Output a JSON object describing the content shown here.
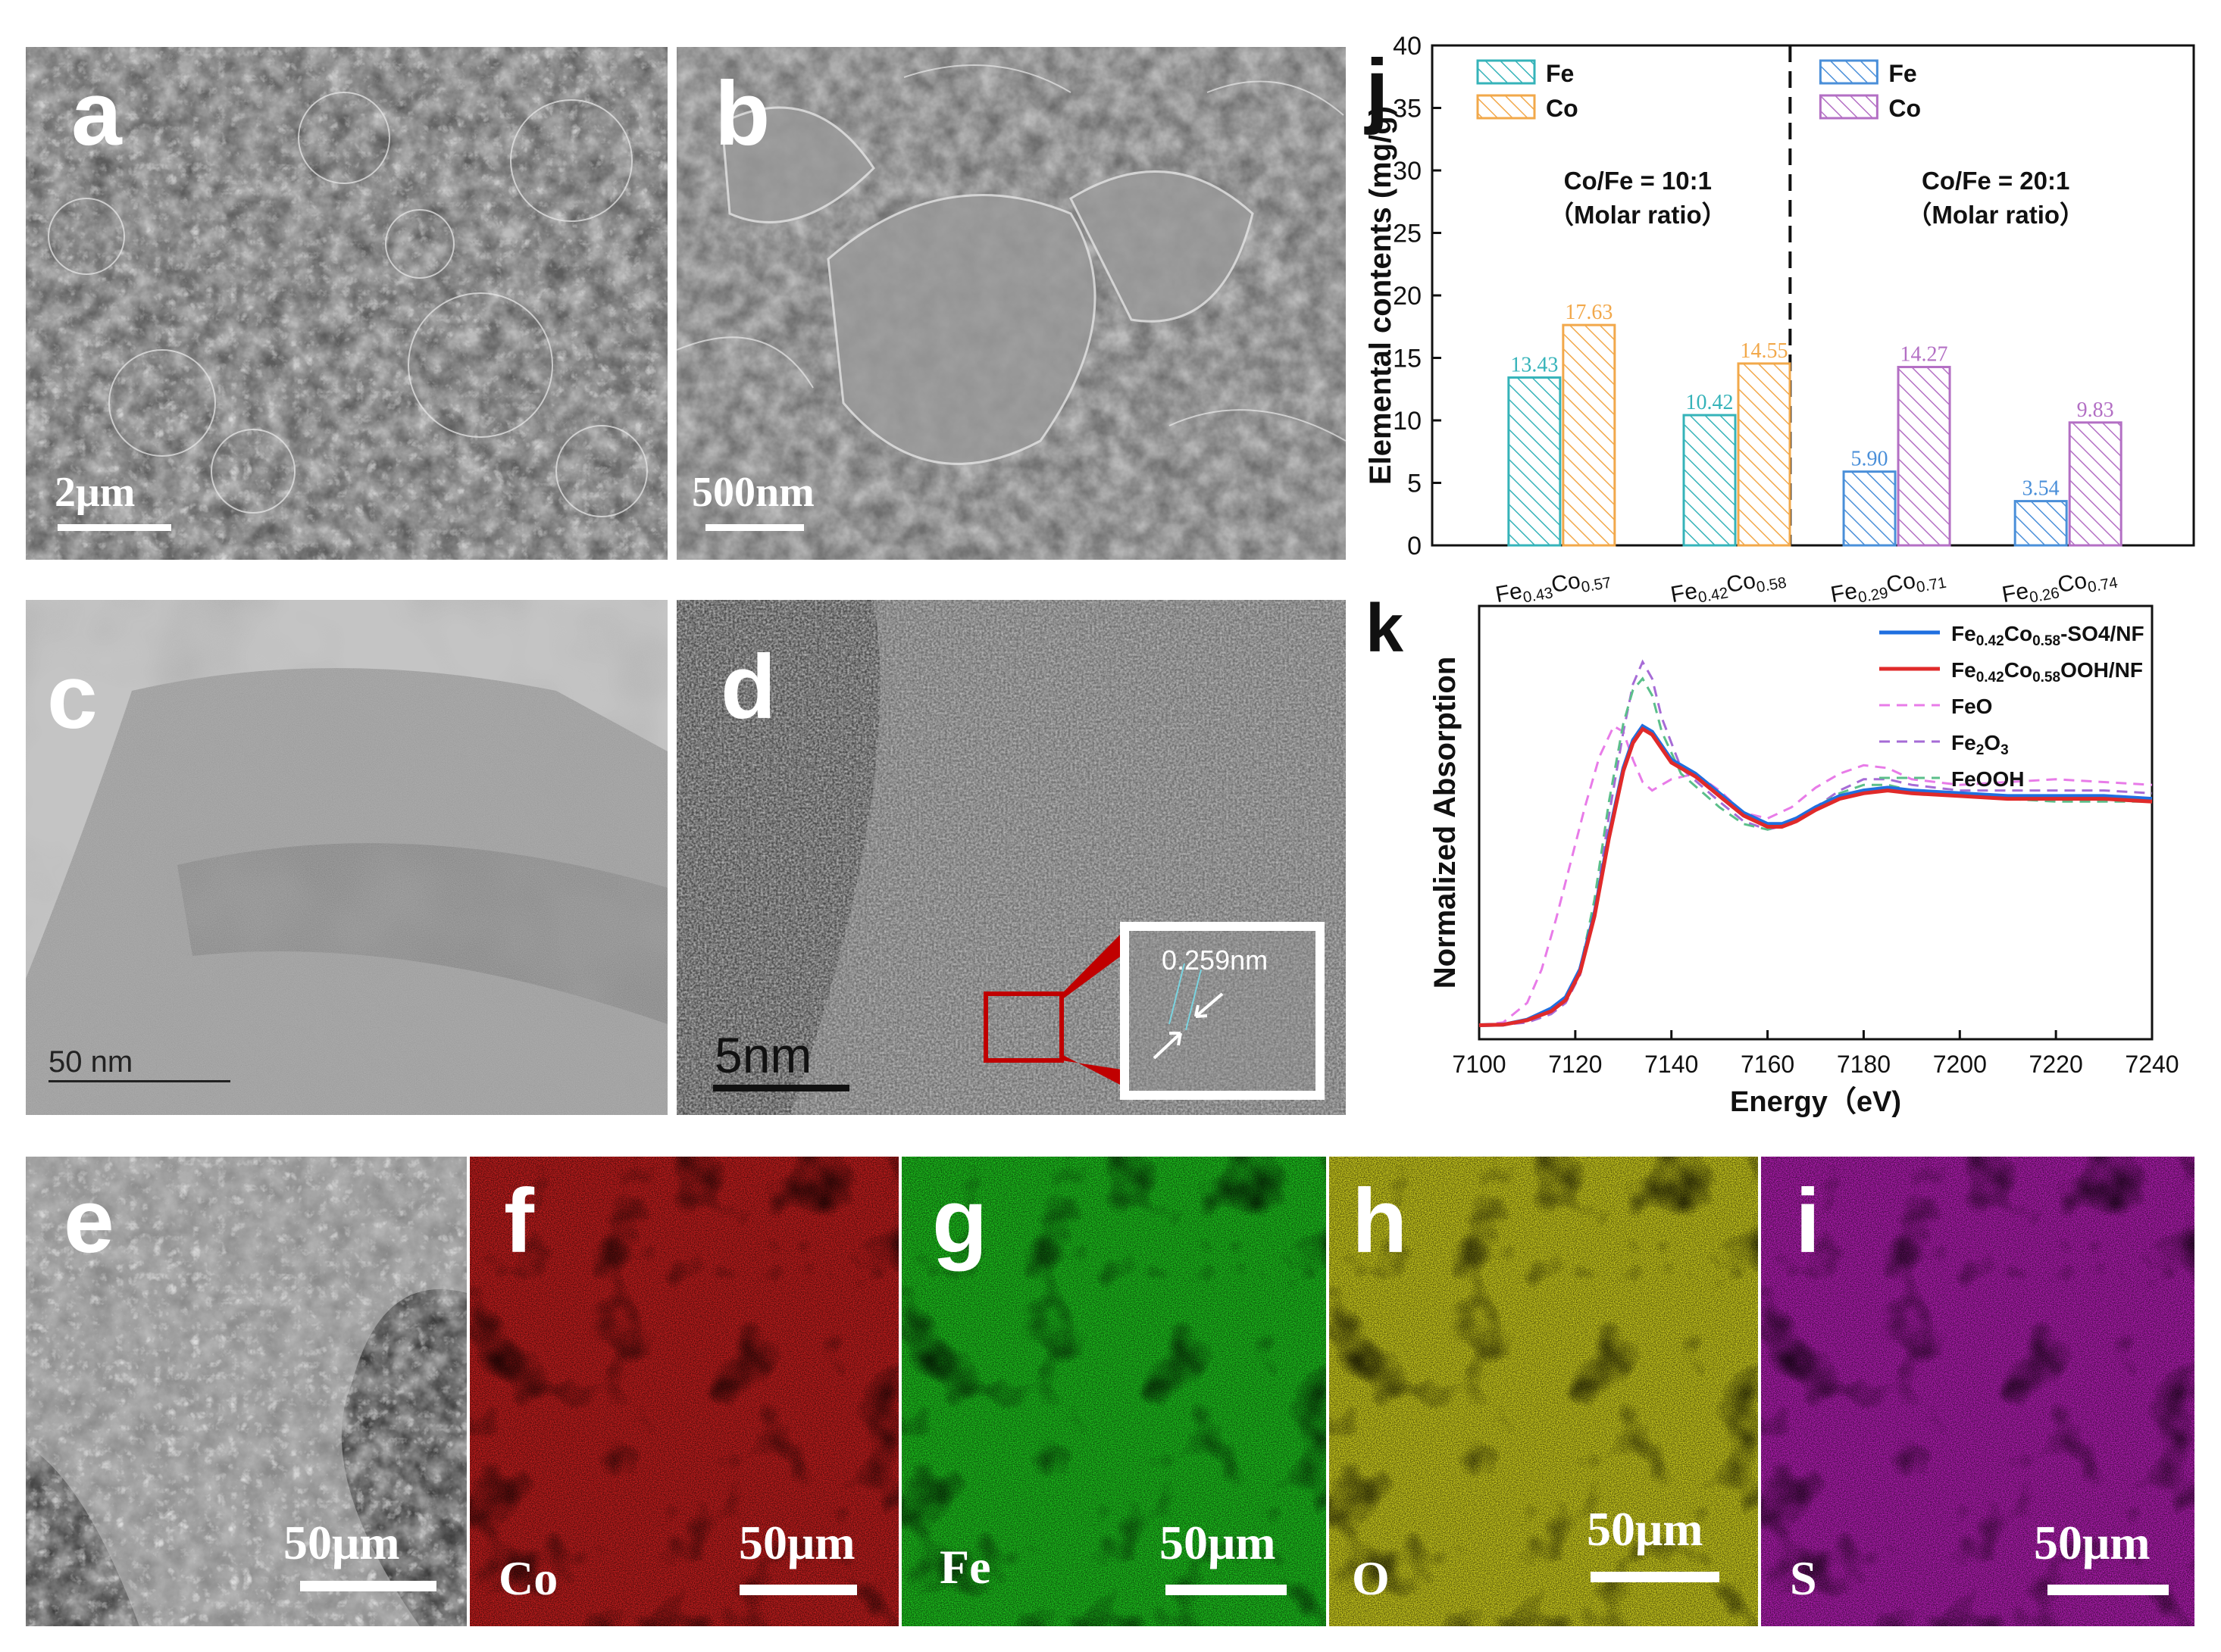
{
  "panels": {
    "a": {
      "label": "a",
      "scale": "2μm"
    },
    "b": {
      "label": "b",
      "scale": "500nm"
    },
    "c": {
      "label": "c",
      "scale": "50 nm"
    },
    "d": {
      "label": "d",
      "scale": "5nm",
      "inset_text": "0.259nm"
    },
    "e": {
      "label": "e",
      "scale": "50μm"
    },
    "f": {
      "label": "f",
      "scale": "50μm",
      "element": "Co",
      "color": "#c81e1e"
    },
    "g": {
      "label": "g",
      "scale": "50μm",
      "element": "Fe",
      "color": "#1ec81e"
    },
    "h": {
      "label": "h",
      "scale": "50μm",
      "element": "O",
      "color": "#d2d21e"
    },
    "i": {
      "label": "i",
      "scale": "50μm",
      "element": "S",
      "color": "#b41eb4"
    }
  },
  "chart_data": [
    {
      "panel_label": "j",
      "type": "bar",
      "ylabel": "Elemental contents (mg/g)",
      "ylim": [
        0,
        40
      ],
      "yticks": [
        0,
        5,
        10,
        15,
        20,
        25,
        30,
        35,
        40
      ],
      "categories": [
        "Fe0.43Co0.57",
        "Fe0.42Co0.58",
        "Fe0.29Co0.71",
        "Fe0.26Co0.74"
      ],
      "category_labels": [
        {
          "a": "Fe",
          "as": "0.43",
          "b": "Co",
          "bs": "0.57"
        },
        {
          "a": "Fe",
          "as": "0.42",
          "b": "Co",
          "bs": "0.58"
        },
        {
          "a": "Fe",
          "as": "0.29",
          "b": "Co",
          "bs": "0.71"
        },
        {
          "a": "Fe",
          "as": "0.26",
          "b": "Co",
          "bs": "0.74"
        }
      ],
      "series": [
        {
          "name": "Fe",
          "values": [
            13.43,
            10.42,
            5.9,
            3.54
          ],
          "value_labels": [
            "13.43",
            "10.42",
            "5.90",
            "3.54"
          ],
          "colors": [
            "#35b3b9",
            "#35b3b9",
            "#4a8fd9",
            "#4a8fd9"
          ]
        },
        {
          "name": "Co",
          "values": [
            17.63,
            14.55,
            14.27,
            9.83
          ],
          "value_labels": [
            "17.63",
            "14.55",
            "14.27",
            "9.83"
          ],
          "colors": [
            "#f2a84a",
            "#f2a84a",
            "#b36fc4",
            "#b36fc4"
          ]
        }
      ],
      "legends": [
        {
          "group": "left",
          "entries": [
            {
              "name": "Fe",
              "color": "#35b3b9"
            },
            {
              "name": "Co",
              "color": "#f2a84a"
            }
          ]
        },
        {
          "group": "right",
          "entries": [
            {
              "name": "Fe",
              "color": "#4a8fd9"
            },
            {
              "name": "Co",
              "color": "#b36fc4"
            }
          ]
        }
      ],
      "annotations": [
        {
          "line1": "Co/Fe = 10:1",
          "line2": "（Molar ratio）"
        },
        {
          "line1": "Co/Fe = 20:1",
          "line2": "（Molar ratio）"
        }
      ],
      "divider": "dashed vertical line between groups"
    },
    {
      "panel_label": "k",
      "type": "line",
      "xlabel": "Energy（eV)",
      "ylabel": "Normalized Absorption",
      "xlim": [
        7100,
        7240
      ],
      "xticks": [
        7100,
        7120,
        7140,
        7160,
        7180,
        7200,
        7220,
        7240
      ],
      "legend_position": "top-right",
      "series": [
        {
          "name": "Fe0.42Co0.58-SO4/NF",
          "legend": {
            "a": "Fe",
            "as": "0.42",
            "b": "Co",
            "bs": "0.58",
            "rest": "-SO4/NF"
          },
          "color": "#1f6fe0",
          "style": "solid",
          "x": [
            7100,
            7105,
            7110,
            7115,
            7118,
            7121,
            7124,
            7127,
            7130,
            7132,
            7134,
            7136,
            7140,
            7145,
            7150,
            7155,
            7160,
            7163,
            7166,
            7170,
            7175,
            7180,
            7185,
            7190,
            7200,
            7210,
            7220,
            7230,
            7240
          ],
          "y": [
            0.0,
            0.002,
            0.02,
            0.06,
            0.1,
            0.2,
            0.4,
            0.68,
            0.92,
            1.02,
            1.07,
            1.05,
            0.95,
            0.9,
            0.83,
            0.76,
            0.72,
            0.72,
            0.74,
            0.78,
            0.82,
            0.84,
            0.85,
            0.84,
            0.83,
            0.82,
            0.82,
            0.82,
            0.81
          ]
        },
        {
          "name": "Fe0.42Co0.58OOH/NF",
          "legend": {
            "a": "Fe",
            "as": "0.42",
            "b": "Co",
            "bs": "0.58",
            "rest": "OOH/NF"
          },
          "color": "#e02a2a",
          "style": "solid",
          "x": [
            7100,
            7105,
            7110,
            7115,
            7118,
            7121,
            7124,
            7127,
            7130,
            7132,
            7134,
            7136,
            7140,
            7145,
            7150,
            7155,
            7160,
            7163,
            7166,
            7170,
            7175,
            7180,
            7185,
            7190,
            7200,
            7210,
            7220,
            7230,
            7240
          ],
          "y": [
            0.0,
            0.002,
            0.018,
            0.05,
            0.09,
            0.19,
            0.39,
            0.67,
            0.91,
            1.01,
            1.06,
            1.04,
            0.94,
            0.89,
            0.82,
            0.75,
            0.71,
            0.71,
            0.73,
            0.77,
            0.81,
            0.83,
            0.84,
            0.83,
            0.82,
            0.81,
            0.81,
            0.81,
            0.8
          ]
        },
        {
          "name": "FeO",
          "color": "#e87be8",
          "style": "dashed",
          "x": [
            7100,
            7105,
            7110,
            7113,
            7116,
            7119,
            7122,
            7125,
            7128,
            7130,
            7132,
            7134,
            7136,
            7140,
            7145,
            7150,
            7155,
            7160,
            7165,
            7170,
            7175,
            7180,
            7185,
            7190,
            7200,
            7210,
            7220,
            7230,
            7240
          ],
          "y": [
            0.0,
            0.01,
            0.08,
            0.2,
            0.38,
            0.58,
            0.78,
            0.96,
            1.07,
            1.05,
            0.95,
            0.87,
            0.84,
            0.88,
            0.9,
            0.84,
            0.76,
            0.74,
            0.78,
            0.85,
            0.9,
            0.93,
            0.92,
            0.88,
            0.86,
            0.87,
            0.88,
            0.87,
            0.86
          ]
        },
        {
          "name": "Fe2O3",
          "legend": {
            "a": "Fe",
            "as": "2",
            "b": "O",
            "bs": "3",
            "rest": ""
          },
          "color": "#a66bd6",
          "style": "dashed",
          "x": [
            7100,
            7105,
            7110,
            7115,
            7118,
            7121,
            7124,
            7127,
            7130,
            7132,
            7134,
            7136,
            7138,
            7142,
            7146,
            7150,
            7155,
            7160,
            7165,
            7170,
            7175,
            7180,
            7185,
            7190,
            7200,
            7210,
            7220,
            7230,
            7240
          ],
          "y": [
            0.0,
            0.002,
            0.01,
            0.04,
            0.08,
            0.18,
            0.4,
            0.75,
            1.05,
            1.22,
            1.3,
            1.24,
            1.1,
            0.92,
            0.86,
            0.8,
            0.73,
            0.7,
            0.72,
            0.78,
            0.84,
            0.88,
            0.88,
            0.86,
            0.84,
            0.84,
            0.84,
            0.84,
            0.83
          ]
        },
        {
          "name": "FeOOH",
          "color": "#5bbf8a",
          "style": "dashed",
          "x": [
            7100,
            7105,
            7110,
            7115,
            7118,
            7121,
            7124,
            7127,
            7130,
            7132,
            7134,
            7136,
            7138,
            7142,
            7146,
            7150,
            7155,
            7160,
            7165,
            7170,
            7175,
            7180,
            7185,
            7190,
            7200,
            7210,
            7220,
            7230,
            7240
          ],
          "y": [
            0.0,
            0.002,
            0.015,
            0.05,
            0.09,
            0.2,
            0.45,
            0.8,
            1.08,
            1.2,
            1.24,
            1.18,
            1.05,
            0.9,
            0.84,
            0.78,
            0.72,
            0.7,
            0.72,
            0.78,
            0.83,
            0.86,
            0.86,
            0.84,
            0.82,
            0.81,
            0.8,
            0.8,
            0.8
          ]
        }
      ]
    }
  ]
}
